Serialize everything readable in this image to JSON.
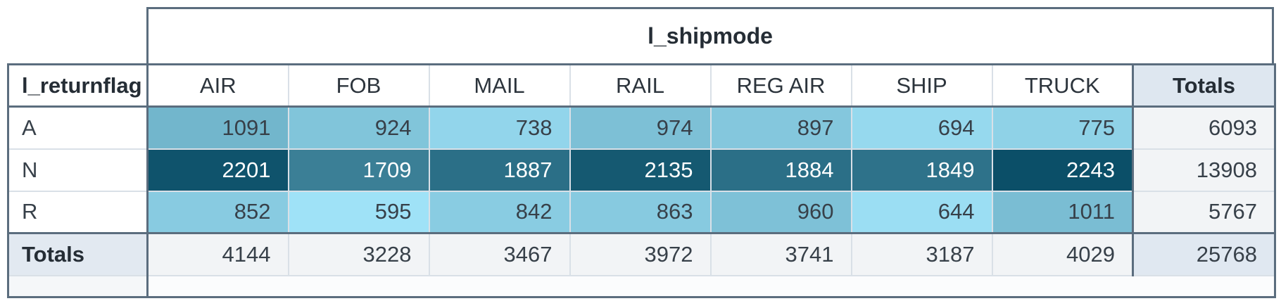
{
  "chart_data": {
    "type": "heatmap",
    "x_dimension_label": "l_shipmode",
    "y_dimension_label": "l_returnflag",
    "totals_label": "Totals",
    "columns": [
      "AIR",
      "FOB",
      "MAIL",
      "RAIL",
      "REG AIR",
      "SHIP",
      "TRUCK"
    ],
    "rows": [
      {
        "label": "A",
        "values": [
          1091,
          924,
          738,
          974,
          897,
          694,
          775
        ],
        "total": 6093
      },
      {
        "label": "N",
        "values": [
          2201,
          1709,
          1887,
          2135,
          1884,
          1849,
          2243
        ],
        "total": 13908
      },
      {
        "label": "R",
        "values": [
          852,
          595,
          842,
          863,
          960,
          644,
          1011
        ],
        "total": 5767
      }
    ],
    "column_totals": [
      4144,
      3228,
      3467,
      3972,
      3741,
      3187,
      4029
    ],
    "grand_total": 25768,
    "heatmap": {
      "min": 595,
      "max": 2243,
      "light_color": "#9fe2f7",
      "dark_color": "#0b4f68",
      "light_rgb": [
        159,
        226,
        247
      ],
      "dark_rgb": [
        11,
        79,
        104
      ],
      "text_on_light": "#374049",
      "text_on_dark": "#ffffff",
      "white_text_threshold": 0.5
    },
    "legend": "none",
    "grid": true
  },
  "colors": {
    "border_dark": "#5b6d7e",
    "border_light": "#d9e0e7",
    "header_totals_bg": "#dee7f0",
    "totals_row_label_bg": "#e2e9f1",
    "totals_cells_bg": "#f2f4f6",
    "grand_total_bg": "#e0e8f1",
    "text_head": "#252d35",
    "text_body": "#374049"
  }
}
